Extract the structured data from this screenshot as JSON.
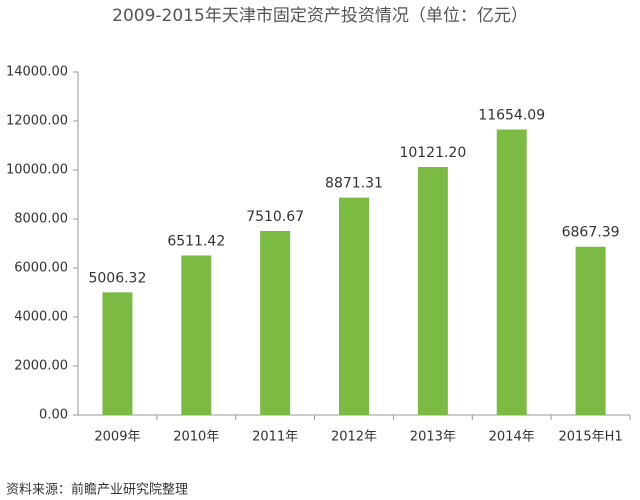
{
  "chart_data": {
    "type": "bar",
    "title": "2009-2015年天津市固定资产投资情况（单位：亿元）",
    "categories": [
      "2009年",
      "2010年",
      "2011年",
      "2012年",
      "2013年",
      "2014年",
      "2015年H1"
    ],
    "values": [
      5006.32,
      6511.42,
      7510.67,
      8871.31,
      10121.2,
      11654.09,
      6867.39
    ],
    "value_labels": [
      "5006.32",
      "6511.42",
      "7510.67",
      "8871.31",
      "10121.20",
      "11654.09",
      "6867.39"
    ],
    "color": "#7cbb43",
    "ylim": [
      0,
      14000
    ],
    "yticks": [
      {
        "value": 0,
        "label": "0.00"
      },
      {
        "value": 2000,
        "label": "2000.00"
      },
      {
        "value": 4000,
        "label": "4000.00"
      },
      {
        "value": 6000,
        "label": "6000.00"
      },
      {
        "value": 8000,
        "label": "8000.00"
      },
      {
        "value": 10000,
        "label": "10000.00"
      },
      {
        "value": 12000,
        "label": "12000.00"
      },
      {
        "value": 14000,
        "label": "14000.00"
      }
    ],
    "grid": false,
    "source": "资料来源：前瞻产业研究院整理"
  }
}
